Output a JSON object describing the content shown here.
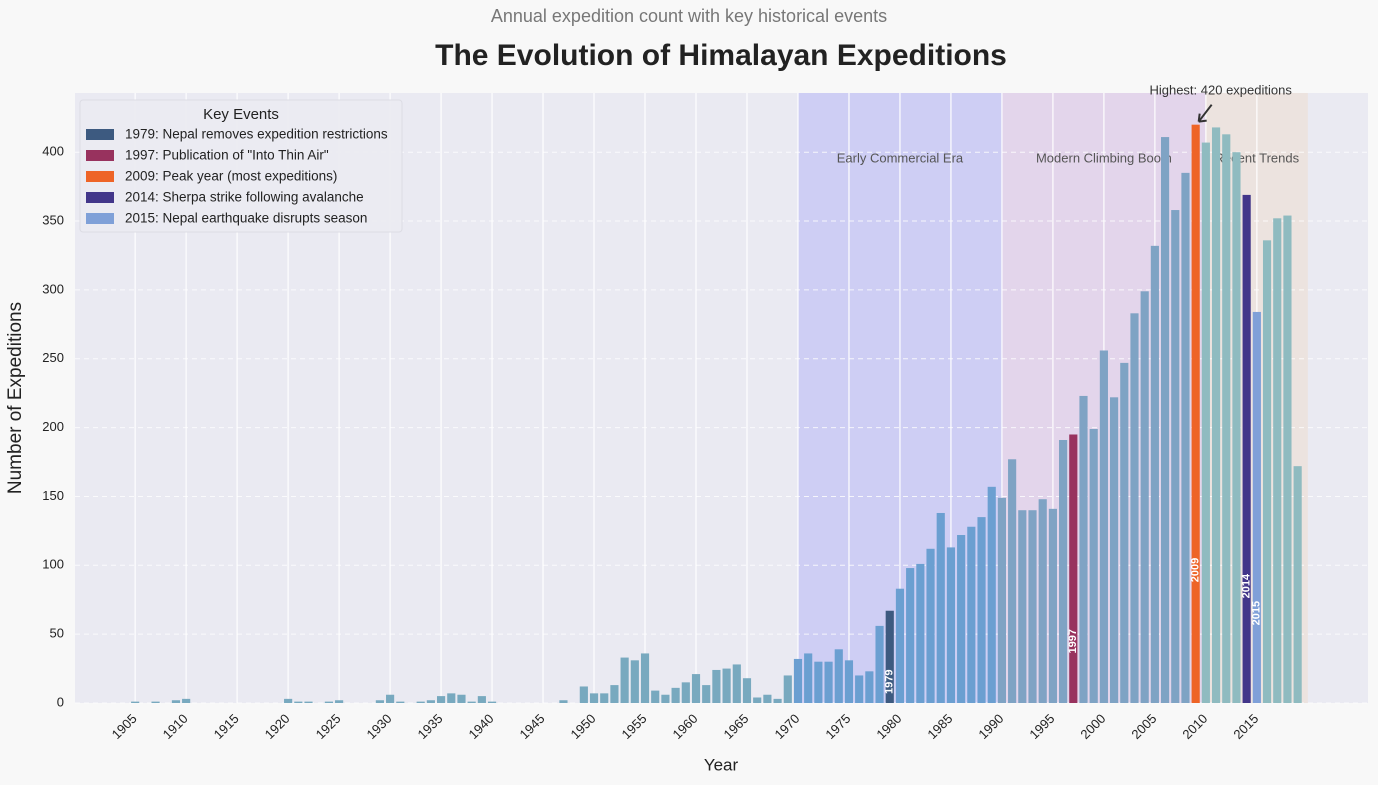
{
  "chart_data": {
    "type": "bar",
    "subtitle": "Annual expedition count with key historical events",
    "title": "The Evolution of Himalayan Expeditions",
    "x_label": "Year",
    "y_label": "Number of Expeditions",
    "x": [
      1905,
      1907,
      1909,
      1910,
      1920,
      1921,
      1922,
      1924,
      1925,
      1929,
      1930,
      1931,
      1933,
      1934,
      1935,
      1936,
      1937,
      1938,
      1939,
      1940,
      1947,
      1949,
      1950,
      1951,
      1952,
      1953,
      1954,
      1955,
      1956,
      1957,
      1958,
      1959,
      1960,
      1961,
      1962,
      1963,
      1964,
      1965,
      1966,
      1967,
      1968,
      1969,
      1970,
      1971,
      1972,
      1973,
      1974,
      1975,
      1976,
      1977,
      1978,
      1979,
      1980,
      1981,
      1982,
      1983,
      1984,
      1985,
      1986,
      1987,
      1988,
      1989,
      1990,
      1991,
      1992,
      1993,
      1994,
      1995,
      1996,
      1997,
      1998,
      1999,
      2000,
      2001,
      2002,
      2003,
      2004,
      2005,
      2006,
      2007,
      2008,
      2009,
      2010,
      2011,
      2012,
      2013,
      2014,
      2015,
      2016,
      2017,
      2018,
      2019
    ],
    "values": [
      1,
      1,
      2,
      3,
      3,
      1,
      1,
      1,
      2,
      2,
      6,
      1,
      1,
      2,
      5,
      7,
      6,
      1,
      5,
      1,
      2,
      12,
      7,
      7,
      13,
      33,
      31,
      36,
      9,
      6,
      11,
      15,
      21,
      13,
      24,
      25,
      28,
      18,
      4,
      6,
      3,
      20,
      32,
      36,
      30,
      30,
      39,
      31,
      20,
      23,
      56,
      67,
      83,
      98,
      101,
      112,
      138,
      113,
      122,
      128,
      135,
      157,
      149,
      177,
      140,
      140,
      148,
      141,
      191,
      195,
      223,
      199,
      256,
      222,
      247,
      283,
      299,
      332,
      411,
      358,
      385,
      420,
      407,
      418,
      413,
      400,
      369,
      284,
      336,
      352,
      354,
      172
    ],
    "color": "#78a9bf",
    "eras": [
      {
        "name": "Early Commercial Era",
        "start": 1970,
        "end": 1990,
        "color": "#b6b6f5",
        "bar_color": "#6b9fd1"
      },
      {
        "name": "Modern Climbing Boom",
        "start": 1990,
        "end": 2010,
        "color": "#dcc3e6",
        "bar_color": "#7fa3c4"
      },
      {
        "name": "Recent Trends",
        "start": 2010,
        "end": 2020,
        "color": "#eddcd0",
        "bar_color": "#8fbbc0"
      }
    ],
    "legend_title": "Key Events",
    "legend_loc": "upper left",
    "events": [
      {
        "year": 1979,
        "label": "1979: Nepal removes expedition restrictions",
        "color": "#3d5a80"
      },
      {
        "year": 1997,
        "label": "1997: Publication of \"Into Thin Air\"",
        "color": "#98325e"
      },
      {
        "year": 2009,
        "label": "2009: Peak year (most expeditions)",
        "color": "#ee6427"
      },
      {
        "year": 2014,
        "label": "2014: Sherpa strike following avalanche",
        "color": "#42368a"
      },
      {
        "year": 2015,
        "label": "2015: Nepal earthquake disrupts season",
        "color": "#7fa0d8"
      }
    ],
    "annotation": {
      "text": "Highest: 420 expeditions",
      "x": 2009,
      "y": 420
    },
    "xlim": [
      1899.1,
      2025.9
    ],
    "ylim": [
      0,
      443
    ],
    "xticks": [
      1905,
      1910,
      1915,
      1920,
      1925,
      1930,
      1935,
      1940,
      1945,
      1950,
      1955,
      1960,
      1965,
      1970,
      1975,
      1980,
      1985,
      1990,
      1995,
      2000,
      2005,
      2010,
      2015
    ],
    "yticks": [
      0,
      50,
      100,
      150,
      200,
      250,
      300,
      350,
      400
    ],
    "grid": true
  }
}
